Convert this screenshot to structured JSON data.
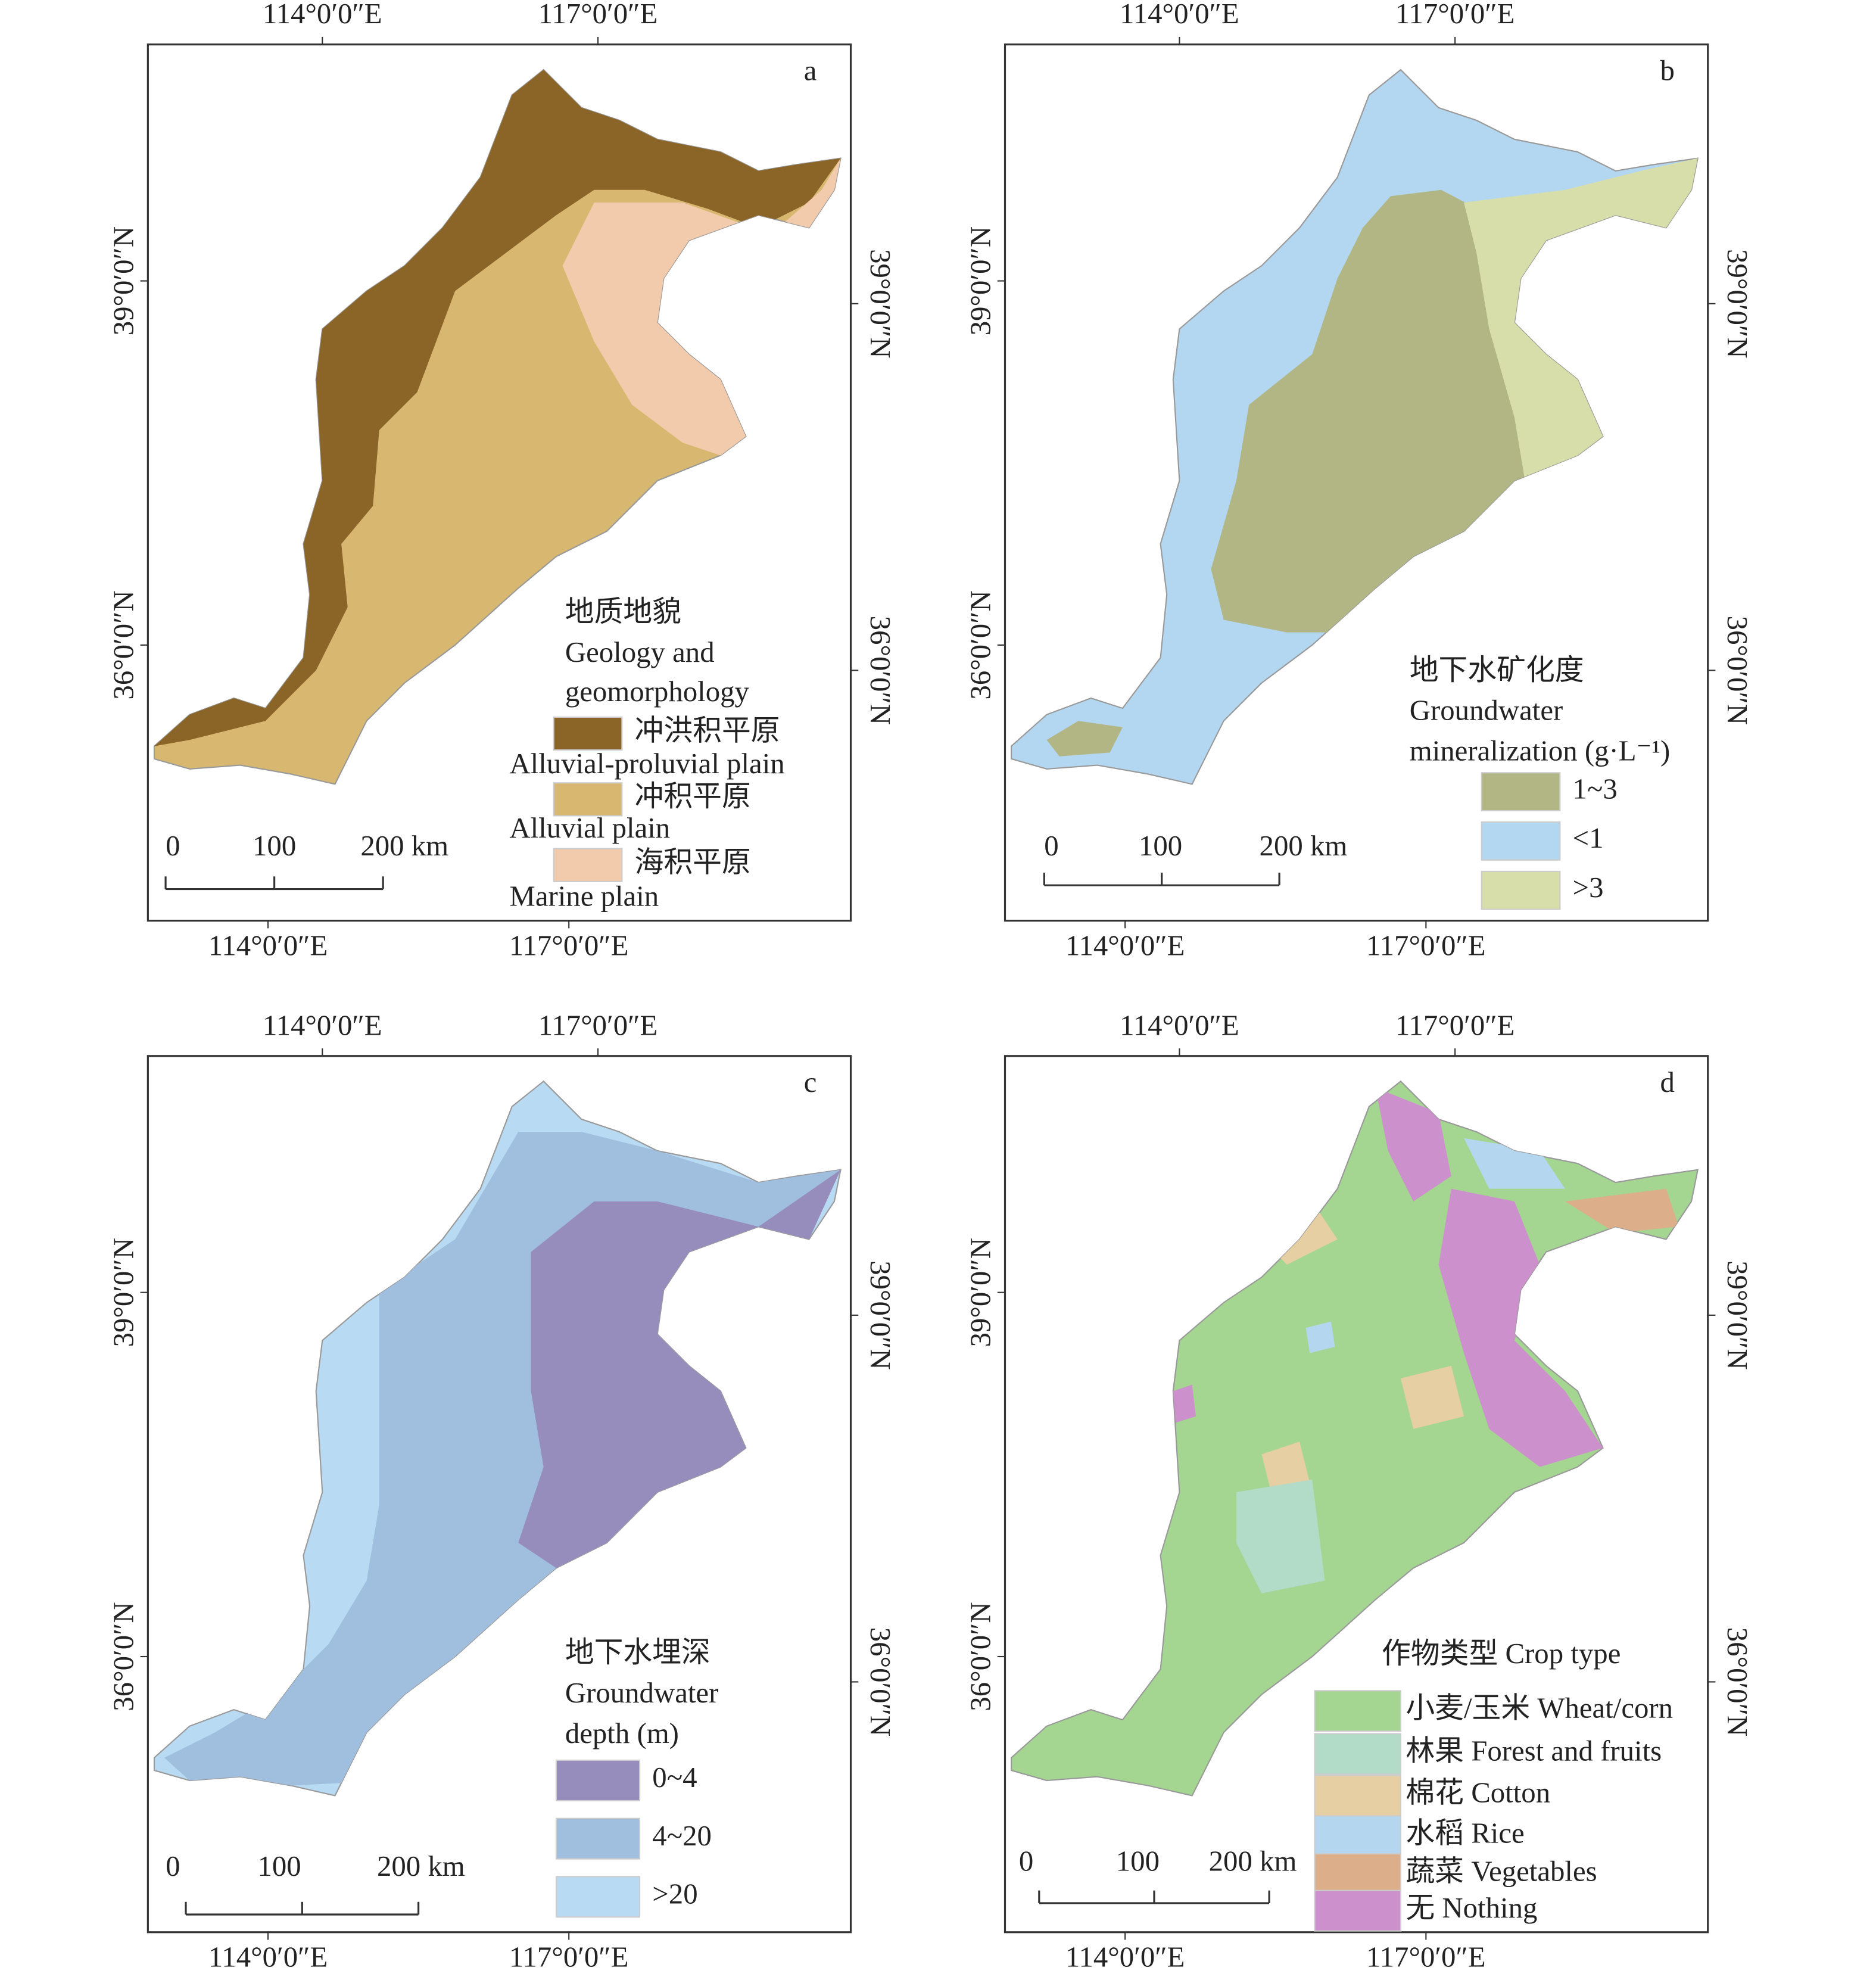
{
  "axes": {
    "lon": [
      "114°0′0″E",
      "117°0′0″E"
    ],
    "lat": [
      "39°0′0″N",
      "36°0′0″N"
    ]
  },
  "scale_bar": [
    "0",
    "100",
    "200 km"
  ],
  "panels": [
    {
      "letter": "a",
      "legend_title": [
        "地质地貌",
        "Geology and",
        "geomorphology"
      ],
      "legend": [
        {
          "label": "冲洪积平原",
          "sublabel": "Alluvial-proluvial plain",
          "color": "#8b6428"
        },
        {
          "label": "冲积平原",
          "sublabel": "Alluvial plain",
          "color": "#d8b870"
        },
        {
          "label": "海积平原",
          "sublabel": "Marine plain",
          "color": "#f1cbac"
        }
      ]
    },
    {
      "letter": "b",
      "legend_title": [
        "地下水矿化度",
        "Groundwater",
        "mineralization (g·L⁻¹)"
      ],
      "legend": [
        {
          "label": "1~3",
          "color": "#b1b684"
        },
        {
          "label": "<1",
          "color": "#b3d7f0"
        },
        {
          "label": ">3",
          "color": "#d8deaa"
        }
      ]
    },
    {
      "letter": "c",
      "legend_title": [
        "地下水埋深",
        "Groundwater",
        "depth (m)"
      ],
      "legend": [
        {
          "label": "0~4",
          "color": "#968dbc"
        },
        {
          "label": "4~20",
          "color": "#a0bede"
        },
        {
          "label": ">20",
          "color": "#b8daf2"
        }
      ]
    },
    {
      "letter": "d",
      "legend_title": [
        "作物类型 Crop type"
      ],
      "legend": [
        {
          "label": "小麦/玉米 Wheat/corn",
          "color": "#a4d692"
        },
        {
          "label": "林果 Forest and fruits",
          "color": "#b2dcc8"
        },
        {
          "label": "棉花 Cotton",
          "color": "#e6cfa2"
        },
        {
          "label": "水稻 Rice",
          "color": "#b4d6ee"
        },
        {
          "label": "蔬菜 Vegetables",
          "color": "#dcae8a"
        },
        {
          "label": "无 Nothing",
          "color": "#cc90cc"
        }
      ]
    }
  ]
}
